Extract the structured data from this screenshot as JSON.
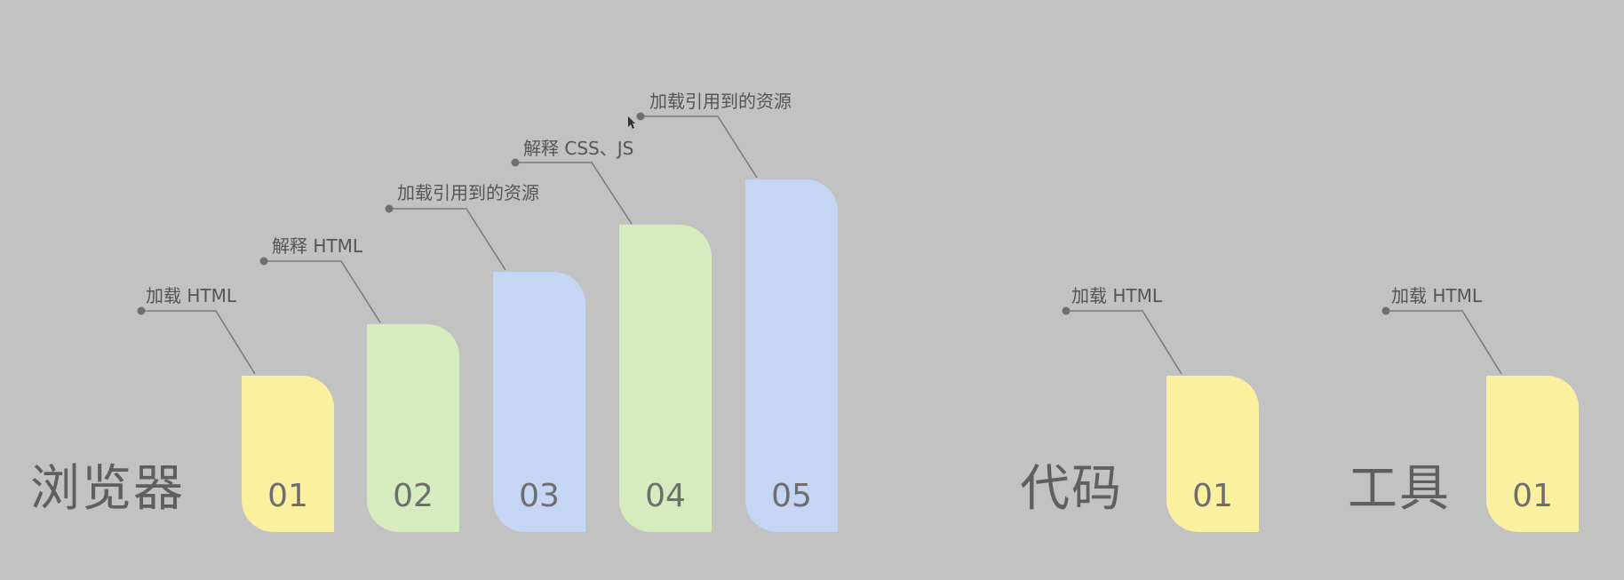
{
  "colors": {
    "background": "#c2c2c2",
    "yellow": "#fbf09f",
    "green": "#d6ecbf",
    "blue": "#c5d6f4",
    "leader": "#7a7a7a"
  },
  "groups": [
    {
      "label": "浏览器",
      "steps": [
        {
          "num": "01",
          "text": "加载 HTML",
          "color": "yellow",
          "level": 1
        },
        {
          "num": "02",
          "text": "解释 HTML",
          "color": "green",
          "level": 2
        },
        {
          "num": "03",
          "text": "加载引用到的资源",
          "color": "blue",
          "level": 3
        },
        {
          "num": "04",
          "text": "解释 CSS、JS",
          "color": "green",
          "level": 4
        },
        {
          "num": "05",
          "text": "加载引用到的资源",
          "color": "blue",
          "level": 5
        }
      ]
    },
    {
      "label": "代码",
      "steps": [
        {
          "num": "01",
          "text": "加载 HTML",
          "color": "yellow",
          "level": 1
        }
      ]
    },
    {
      "label": "工具",
      "steps": [
        {
          "num": "01",
          "text": "加载 HTML",
          "color": "yellow",
          "level": 1
        }
      ]
    }
  ]
}
